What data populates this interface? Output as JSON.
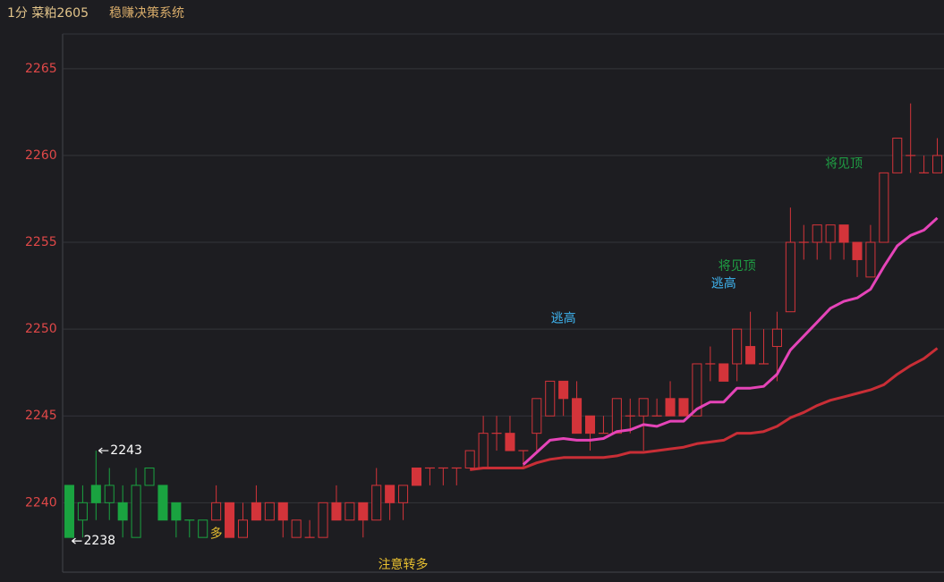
{
  "header": {
    "symbol": "1分 菜粕2605",
    "system": "稳赚决策系统"
  },
  "chart_data": {
    "type": "candlestick",
    "open": [
      2241,
      2239,
      2241,
      2240,
      2240,
      2238,
      2241,
      2241,
      2240,
      2239,
      2238,
      2239,
      2240,
      2238,
      2240,
      2239,
      2240,
      2238,
      2238,
      2238,
      2240,
      2239,
      2240,
      2239,
      2241,
      2240,
      2242,
      2242,
      2242,
      2242,
      2242,
      2242,
      2244,
      2244,
      2243,
      2244,
      2245,
      2247,
      2246,
      2245,
      2244,
      2244,
      2245,
      2245,
      2245,
      2246,
      2246,
      2245,
      2248,
      2248,
      2248,
      2249,
      2248,
      2249,
      2251,
      2255,
      2255,
      2255,
      2256,
      2255,
      2253,
      2255,
      2259,
      2260,
      2259,
      2259
    ],
    "high": [
      2241,
      2241,
      2243,
      2242,
      2241,
      2242,
      2242,
      2241,
      2240,
      2239,
      2239,
      2241,
      2240,
      2240,
      2241,
      2240,
      2240,
      2239,
      2239,
      2240,
      2241,
      2240,
      2240,
      2242,
      2241,
      2241,
      2242,
      2242,
      2242,
      2242,
      2243,
      2245,
      2245,
      2245,
      2243,
      2246,
      2247,
      2247,
      2247,
      2245,
      2245,
      2246,
      2246,
      2246,
      2246,
      2247,
      2246,
      2248,
      2249,
      2248,
      2250,
      2251,
      2250,
      2251,
      2257,
      2256,
      2256,
      2256,
      2256,
      2255,
      2256,
      2259,
      2261,
      2263,
      2260,
      2261
    ],
    "low": [
      2238,
      2238,
      2239,
      2239,
      2238,
      2238,
      2241,
      2239,
      2238,
      2238,
      2238,
      2239,
      2238,
      2238,
      2239,
      2239,
      2238,
      2238,
      2238,
      2238,
      2239,
      2239,
      2238,
      2239,
      2239,
      2239,
      2241,
      2241,
      2241,
      2241,
      2242,
      2242,
      2243,
      2243,
      2242,
      2243,
      2245,
      2245,
      2244,
      2243,
      2244,
      2244,
      2244,
      2243,
      2245,
      2245,
      2245,
      2245,
      2247,
      2247,
      2247,
      2248,
      2248,
      2247,
      2251,
      2254,
      2254,
      2254,
      2254,
      2253,
      2253,
      2255,
      2259,
      2259,
      2259,
      2259
    ],
    "close": [
      2238,
      2240,
      2240,
      2241,
      2239,
      2241,
      2242,
      2239,
      2239,
      2239,
      2239,
      2240,
      2238,
      2239,
      2239,
      2240,
      2239,
      2239,
      2238,
      2240,
      2239,
      2240,
      2239,
      2241,
      2240,
      2241,
      2241,
      2242,
      2242,
      2242,
      2243,
      2244,
      2244,
      2243,
      2243,
      2246,
      2247,
      2246,
      2244,
      2244,
      2244,
      2246,
      2245,
      2246,
      2245,
      2245,
      2245,
      2248,
      2248,
      2247,
      2250,
      2248,
      2248,
      2250,
      2255,
      2255,
      2256,
      2256,
      2255,
      2254,
      2255,
      2259,
      2261,
      2260,
      2259,
      2260
    ],
    "colors": [
      "#1aa340",
      "#1aa340",
      "#1aa340",
      "#1aa340",
      "#1aa340",
      "#1aa340",
      "#1aa340",
      "#1aa340",
      "#1aa340",
      "#1aa340",
      "#1aa340",
      "#d3343a",
      "#d3343a",
      "#d3343a",
      "#d3343a",
      "#d3343a",
      "#d3343a",
      "#d3343a",
      "#d3343a",
      "#d3343a",
      "#d3343a",
      "#d3343a",
      "#d3343a",
      "#d3343a",
      "#d3343a",
      "#d3343a",
      "#d3343a",
      "#d3343a",
      "#d3343a",
      "#d3343a",
      "#d3343a",
      "#d3343a",
      "#d3343a",
      "#d3343a",
      "#d3343a",
      "#d3343a",
      "#d3343a",
      "#d3343a",
      "#d3343a",
      "#d3343a",
      "#d3343a",
      "#d3343a",
      "#d3343a",
      "#d3343a",
      "#d3343a",
      "#d3343a",
      "#d3343a",
      "#d3343a",
      "#d3343a",
      "#d3343a",
      "#d3343a",
      "#d3343a",
      "#d3343a",
      "#d3343a",
      "#d3343a",
      "#d3343a",
      "#d3343a",
      "#d3343a",
      "#d3343a",
      "#d3343a",
      "#d3343a",
      "#d3343a",
      "#d3343a",
      "#d3343a",
      "#d3343a",
      "#d3343a"
    ],
    "series": [
      {
        "color": "#e544b8",
        "values": [
          null,
          null,
          null,
          null,
          null,
          null,
          null,
          null,
          null,
          null,
          null,
          null,
          null,
          null,
          null,
          null,
          null,
          null,
          null,
          null,
          null,
          null,
          null,
          null,
          null,
          null,
          null,
          null,
          null,
          null,
          null,
          null,
          null,
          null,
          2242.2,
          2242.9,
          2243.6,
          2243.7,
          2243.6,
          2243.6,
          2243.7,
          2244.1,
          2244.2,
          2244.5,
          2244.4,
          2244.7,
          2244.7,
          2245.4,
          2245.8,
          2245.8,
          2246.6,
          2246.6,
          2246.7,
          2247.4,
          2248.8,
          2249.6,
          2250.4,
          2251.2,
          2251.6,
          2251.8,
          2252.3,
          2253.6,
          2254.8,
          2255.4,
          2255.7,
          2256.4
        ]
      },
      {
        "color": "#c92e36",
        "values": [
          null,
          null,
          null,
          null,
          null,
          null,
          null,
          null,
          null,
          null,
          null,
          null,
          null,
          null,
          null,
          null,
          null,
          null,
          null,
          null,
          null,
          null,
          null,
          null,
          null,
          null,
          null,
          null,
          null,
          null,
          2241.9,
          2242.0,
          2242.0,
          2242.0,
          2242.0,
          2242.3,
          2242.5,
          2242.6,
          2242.6,
          2242.6,
          2242.6,
          2242.7,
          2242.9,
          2242.9,
          2243.0,
          2243.1,
          2243.2,
          2243.4,
          2243.5,
          2243.6,
          2244.0,
          2244.0,
          2244.1,
          2244.4,
          2244.9,
          2245.2,
          2245.6,
          2245.9,
          2246.1,
          2246.3,
          2246.5,
          2246.8,
          2247.4,
          2247.9,
          2248.3,
          2248.9
        ]
      }
    ],
    "extreme_marks": [
      {
        "index": 2,
        "at": "high"
      },
      {
        "index": 0,
        "at": "low"
      }
    ],
    "annotations": [
      {
        "text": "多",
        "index": 11,
        "value": 2238.2,
        "color": "#e8c030"
      },
      {
        "text": "注意转多",
        "index": 25,
        "value": 2236.4,
        "color": "#e8c030"
      },
      {
        "text": "逃高",
        "index": 37,
        "value": 2250.6,
        "color": "#3fb6f2"
      },
      {
        "text": "逃高",
        "index": 49,
        "value": 2252.6,
        "color": "#3fb6f2"
      },
      {
        "text": "将见顶",
        "index": 50,
        "value": 2253.6,
        "color": "#1f9e44"
      },
      {
        "text": "将见顶",
        "index": 58,
        "value": 2259.5,
        "color": "#1f9e44"
      }
    ],
    "ylim": [
      2236,
      2267
    ],
    "yticks": [
      2240,
      2245,
      2250,
      2255,
      2260,
      2265
    ],
    "tick_color": "#e04848",
    "grid": true
  }
}
